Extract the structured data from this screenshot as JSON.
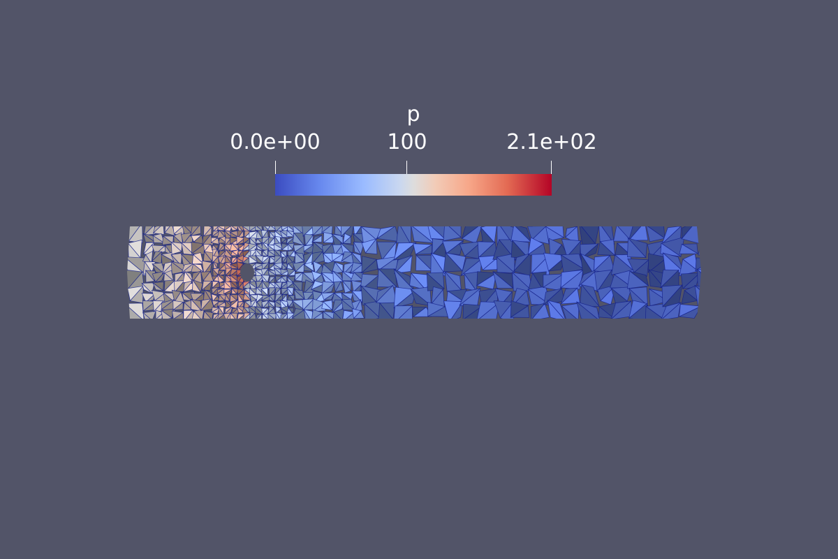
{
  "legend": {
    "title": "p",
    "ticks": [
      {
        "label": "0.0e+00",
        "value": 0
      },
      {
        "label": "100",
        "value": 100
      },
      {
        "label": "2.1e+02",
        "value": 210
      }
    ],
    "range": [
      0,
      210
    ],
    "colormap": [
      "#3b4cc0",
      "#6788ee",
      "#9abbff",
      "#c9d7f0",
      "#dddddd",
      "#f2cbb7",
      "#f7a789",
      "#e36a53",
      "#b40426"
    ]
  },
  "colors": {
    "background": "#525468",
    "mesh_edges": "#14208a",
    "mesh_shadow": "#1a2050"
  }
}
